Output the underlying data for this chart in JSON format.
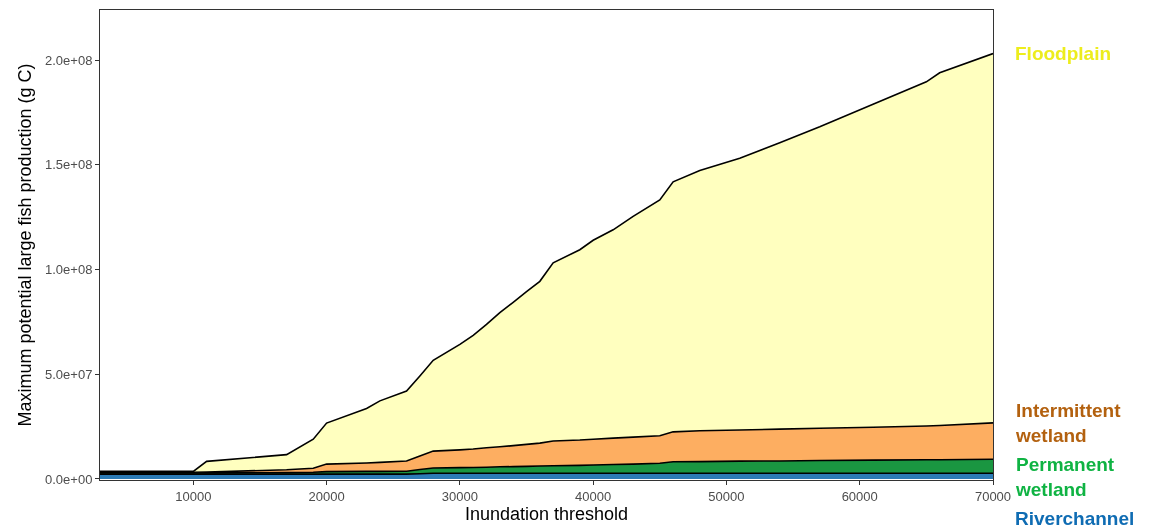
{
  "chart_data": {
    "type": "area",
    "stacked": true,
    "xlabel": "Inundation threshold",
    "ylabel": "Maximum potential large fish production (g C)",
    "x": [
      3000,
      10000,
      11000,
      17000,
      19000,
      20000,
      23000,
      24000,
      26000,
      27000,
      28000,
      30000,
      31000,
      32000,
      33000,
      34000,
      35000,
      36000,
      37000,
      39000,
      40000,
      41500,
      43000,
      45000,
      46000,
      48000,
      51000,
      54000,
      57000,
      61000,
      65000,
      66000,
      70000
    ],
    "series": [
      {
        "name": "Riverchannel",
        "color": "#2c7bb6",
        "values": [
          2300000.0,
          2300000.0,
          2300000.0,
          2300000.0,
          2300000.0,
          2300000.0,
          2300000.0,
          2300000.0,
          2300000.0,
          2500000.0,
          2700000.0,
          2700000.0,
          2700000.0,
          2700000.0,
          2700000.0,
          2700000.0,
          2700000.0,
          2700000.0,
          2700000.0,
          2700000.0,
          2700000.0,
          2700000.0,
          2700000.0,
          2700000.0,
          2700000.0,
          2700000.0,
          2700000.0,
          2700000.0,
          2700000.0,
          2700000.0,
          2700000.0,
          2700000.0,
          2700000.0
        ]
      },
      {
        "name": "Permanent wetland",
        "color": "#1a9641",
        "values": [
          600000.0,
          600000.0,
          600000.0,
          700000.0,
          900000.0,
          1200000.0,
          1300000.0,
          1300000.0,
          1400000.0,
          2000000.0,
          2500000.0,
          2700000.0,
          2800000.0,
          2900000.0,
          3100000.0,
          3200000.0,
          3300000.0,
          3500000.0,
          3600000.0,
          3800000.0,
          4000000.0,
          4200000.0,
          4400000.0,
          4800000.0,
          5500000.0,
          5600000.0,
          5800000.0,
          5900000.0,
          6100000.0,
          6300000.0,
          6500000.0,
          6500000.0,
          6700000.0
        ]
      },
      {
        "name": "Intermittent wetland",
        "color": "#fdae61",
        "values": [
          300000.0,
          300000.0,
          400000.0,
          1400000.0,
          1900000.0,
          3600000.0,
          4000000.0,
          4300000.0,
          4900000.0,
          6500000.0,
          8100000.0,
          8500000.0,
          8800000.0,
          9300000.0,
          9600000.0,
          10000000.0,
          10500000.0,
          10900000.0,
          11800000.0,
          12100000.0,
          12300000.0,
          12600000.0,
          12900000.0,
          13100000.0,
          14300000.0,
          14700000.0,
          14900000.0,
          15200000.0,
          15400000.0,
          15700000.0,
          16100000.0,
          16300000.0,
          17400000.0
        ]
      },
      {
        "name": "Floodplain",
        "color": "#ffffbf",
        "values": [
          400000.0,
          400000.0,
          5100000.0,
          7200000.0,
          13900000.0,
          19600000.0,
          26100000.0,
          29400000.0,
          33400000.0,
          38200000.0,
          43400000.0,
          50400000.0,
          54300000.0,
          58900000.0,
          64000000.0,
          68500000.0,
          73000000.0,
          77300000.0,
          85100000.0,
          90900000.0,
          95000000.0,
          99500000.0,
          105400000.0,
          112700000.0,
          119400000.0,
          124300000.0,
          129800000.0,
          136800000.0,
          144000000.0,
          154300000.0,
          164400000.0,
          168500000.0,
          176400000.0
        ]
      }
    ],
    "xlim": [
      3000,
      70000
    ],
    "xticks": [
      10000,
      20000,
      30000,
      40000,
      50000,
      60000,
      70000
    ],
    "ylim": [
      -500000,
      224000000
    ],
    "yticks": [
      {
        "value": 0,
        "label": "0.0e+00"
      },
      {
        "value": 50000000,
        "label": "5.0e+07"
      },
      {
        "value": 100000000,
        "label": "1.0e+08"
      },
      {
        "value": 150000000,
        "label": "1.5e+08"
      },
      {
        "value": 200000000,
        "label": "2.0e+08"
      }
    ],
    "grid": false,
    "legend": false
  }
}
